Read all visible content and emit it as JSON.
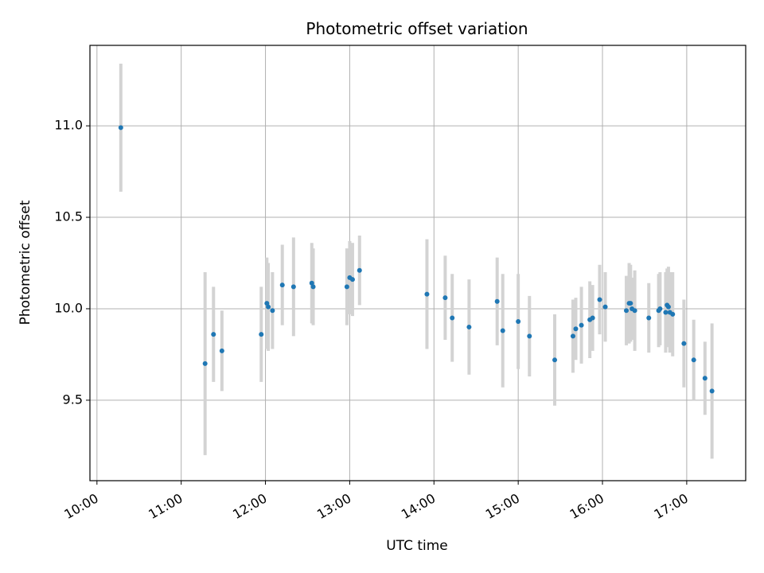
{
  "chart_data": {
    "type": "scatter",
    "title": "Photometric offset variation",
    "xlabel": "UTC time",
    "ylabel": "Photometric offset",
    "x_ticks": [
      "10:00",
      "11:00",
      "12:00",
      "13:00",
      "14:00",
      "15:00",
      "16:00",
      "17:00"
    ],
    "y_ticks": [
      "9.5",
      "10.0",
      "10.5",
      "11.0"
    ],
    "xlim": [
      "09:55",
      "17:42"
    ],
    "ylim": [
      9.06,
      11.44
    ],
    "grid": true,
    "colors": {
      "point": "#1f77b4",
      "errorbar": "#d3d3d3",
      "grid": "#b0b0b0"
    },
    "series": [
      {
        "x": [
          "10:17",
          "11:17",
          "11:23",
          "11:29",
          "11:57",
          "12:01",
          "12:02",
          "12:05",
          "12:12",
          "12:20",
          "12:33",
          "12:34",
          "12:58",
          "13:00",
          "13:02",
          "13:07",
          "13:55",
          "14:08",
          "14:13",
          "14:25",
          "14:45",
          "14:49",
          "15:00",
          "15:08",
          "15:26",
          "15:39",
          "15:41",
          "15:45",
          "15:51",
          "15:53",
          "15:58",
          "16:02",
          "16:17",
          "16:19",
          "16:20",
          "16:21",
          "16:23",
          "16:33",
          "16:40",
          "16:41",
          "16:45",
          "16:46",
          "16:47",
          "16:48",
          "16:50",
          "16:58",
          "17:05",
          "17:13",
          "17:18"
        ],
        "y": [
          10.99,
          9.7,
          9.86,
          9.77,
          9.86,
          10.03,
          10.01,
          9.99,
          10.13,
          10.12,
          10.14,
          10.12,
          10.12,
          10.17,
          10.16,
          10.21,
          10.08,
          10.06,
          9.95,
          9.9,
          10.04,
          9.88,
          9.93,
          9.85,
          9.72,
          9.85,
          9.89,
          9.91,
          9.94,
          9.95,
          10.05,
          10.01,
          9.99,
          10.03,
          10.03,
          10.0,
          9.99,
          9.95,
          9.99,
          10.0,
          9.98,
          10.02,
          10.01,
          9.98,
          9.97,
          9.81,
          9.72,
          9.62,
          9.55
        ],
        "yerr": [
          0.35,
          0.5,
          0.26,
          0.22,
          0.26,
          0.25,
          0.24,
          0.21,
          0.22,
          0.27,
          0.22,
          0.21,
          0.21,
          0.2,
          0.2,
          0.19,
          0.3,
          0.23,
          0.24,
          0.26,
          0.24,
          0.31,
          0.26,
          0.22,
          0.25,
          0.2,
          0.17,
          0.21,
          0.21,
          0.18,
          0.19,
          0.19,
          0.19,
          0.22,
          0.21,
          0.17,
          0.22,
          0.19,
          0.2,
          0.2,
          0.22,
          0.2,
          0.22,
          0.22,
          0.23,
          0.24,
          0.22,
          0.2,
          0.37
        ]
      }
    ]
  }
}
